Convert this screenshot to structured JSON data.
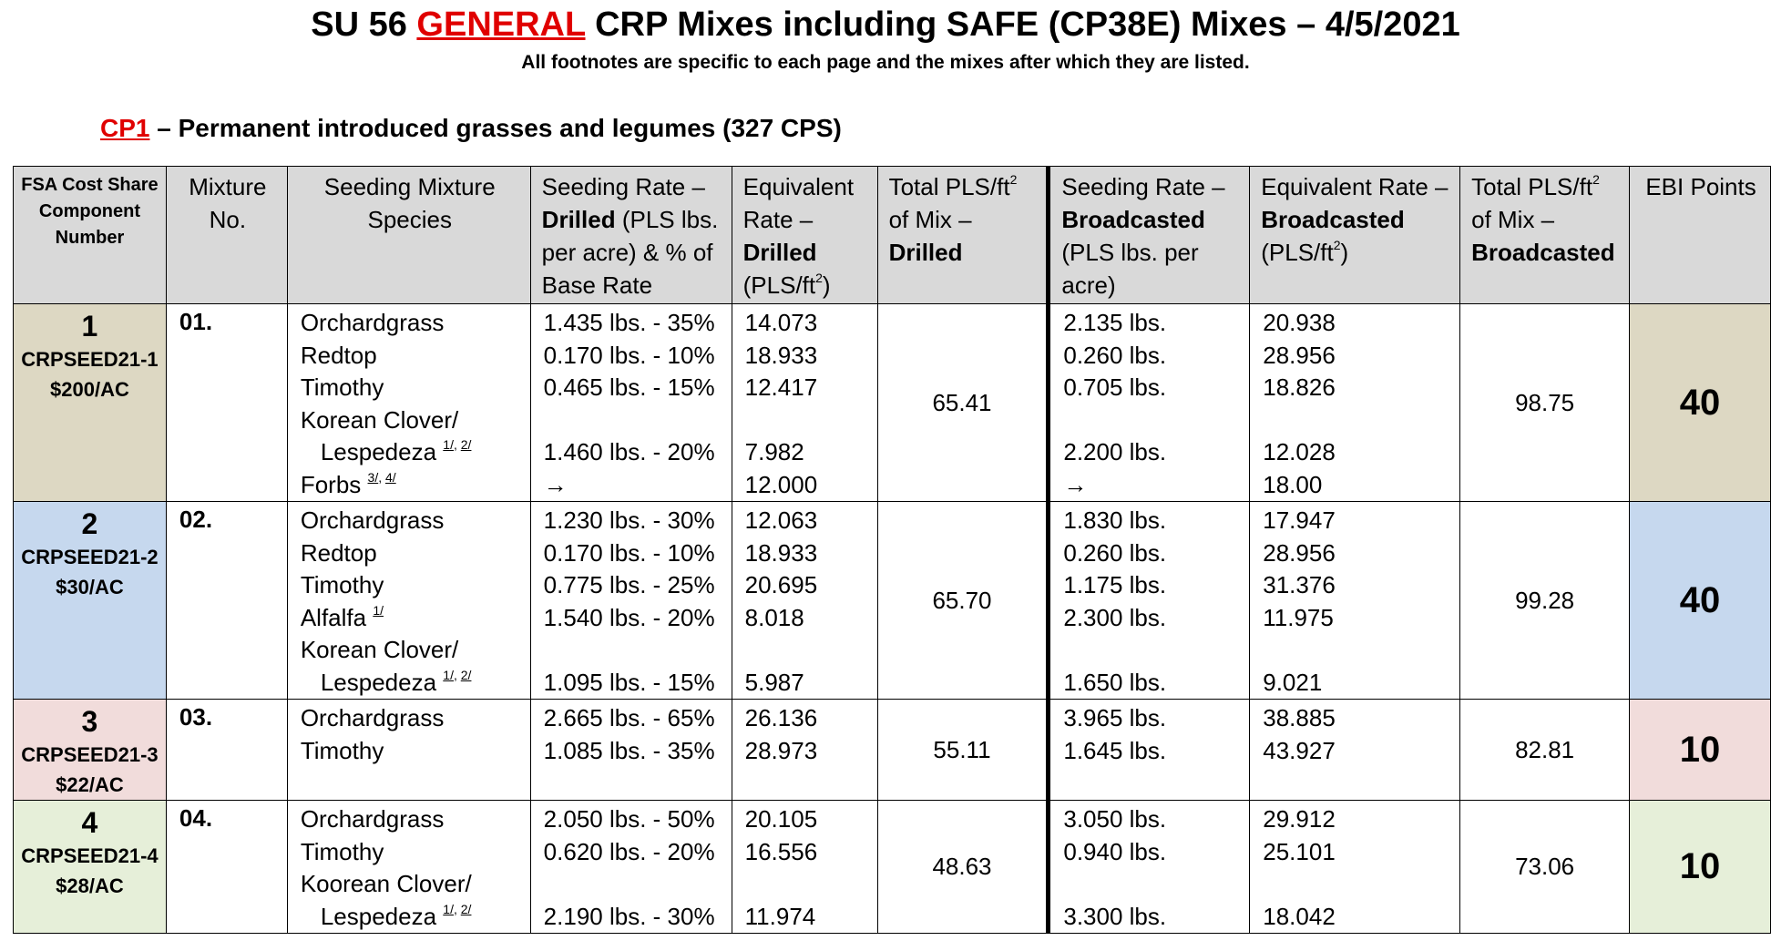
{
  "title": {
    "prefix": "SU 56 ",
    "highlight": "GENERAL",
    "suffix": " CRP Mixes including SAFE (CP38E) Mixes – 4/5/2021"
  },
  "subtitle": "All footnotes are specific to each page and the mixes after which they are listed.",
  "section": {
    "code": "CP1",
    "description": " – Permanent introduced grasses and legumes (327 CPS)"
  },
  "colors": {
    "accent_red": "#e00000",
    "header_gray": "#d9d9d9",
    "row1": "#ddd8c3",
    "row2": "#c6d8ee",
    "row3": "#f1dcdb",
    "row4": "#e6efd9"
  },
  "headers": {
    "component": "FSA Cost Share Component Number",
    "mixture_no": "Mixture No.",
    "species": "Seeding Mixture Species",
    "drilled_rate_a": "Seeding Rate – ",
    "drilled_rate_b": "Drilled",
    "drilled_rate_c": " (PLS lbs. per acre) & % of Base Rate",
    "equiv_drilled_a": "Equivalent Rate – ",
    "equiv_drilled_b": "Drilled",
    "equiv_drilled_c": " (PLS/ft",
    "equiv_drilled_sup": "2",
    "equiv_drilled_d": ")",
    "total_drilled_a": "Total PLS/ft",
    "total_drilled_sup": "2",
    "total_drilled_b": " of Mix – ",
    "total_drilled_c": "Drilled",
    "broad_rate_a": "Seeding Rate – ",
    "broad_rate_b": "Broadcasted",
    "broad_rate_c": " (PLS lbs. per acre)",
    "equiv_broad_a": "Equivalent Rate – ",
    "equiv_broad_b": "Broadcasted",
    "equiv_broad_c": " (PLS/ft",
    "equiv_broad_sup": "2",
    "equiv_broad_d": ")",
    "total_broad_a": "Total PLS/ft",
    "total_broad_sup": "2",
    "total_broad_b": " of Mix – ",
    "total_broad_c": "Broadcasted",
    "ebi": "EBI Points"
  },
  "rows": [
    {
      "comp_num": "1",
      "comp_id": "CRPSEED21-1",
      "comp_cost": "$200/AC",
      "mix_no": "01.",
      "species": [
        {
          "name": "Orchardgrass"
        },
        {
          "name": "Redtop"
        },
        {
          "name": "Timothy"
        },
        {
          "name": "Korean Clover/"
        },
        {
          "name": "Lespedeza",
          "indent": true,
          "fn": [
            "1/",
            "2/"
          ]
        },
        {
          "name": "Forbs",
          "fn": [
            "3/",
            "4/"
          ]
        }
      ],
      "drilled": [
        "1.435 lbs. - 35%",
        "0.170 lbs. - 10%",
        "0.465 lbs. - 15%",
        "",
        "1.460 lbs. - 20%",
        "→"
      ],
      "equiv_drilled": [
        "14.073",
        "18.933",
        "12.417",
        "",
        "7.982",
        "12.000"
      ],
      "total_drilled": "65.41",
      "broadcast": [
        "2.135 lbs.",
        "0.260 lbs.",
        "0.705 lbs.",
        "",
        "2.200 lbs.",
        "→"
      ],
      "equiv_broadcast": [
        "20.938",
        "28.956",
        "18.826",
        "",
        "12.028",
        "18.00"
      ],
      "total_broadcast": "98.75",
      "ebi": "40"
    },
    {
      "comp_num": "2",
      "comp_id": "CRPSEED21-2",
      "comp_cost": "$30/AC",
      "mix_no": "02.",
      "species": [
        {
          "name": "Orchardgrass"
        },
        {
          "name": "Redtop"
        },
        {
          "name": "Timothy"
        },
        {
          "name": "Alfalfa",
          "fn": [
            "1/"
          ]
        },
        {
          "name": "Korean Clover/"
        },
        {
          "name": "Lespedeza",
          "indent": true,
          "fn": [
            "1/",
            "2/"
          ]
        }
      ],
      "drilled": [
        "1.230 lbs. - 30%",
        "0.170 lbs. - 10%",
        "0.775 lbs. - 25%",
        "1.540 lbs. - 20%",
        "",
        "1.095 lbs. - 15%"
      ],
      "equiv_drilled": [
        "12.063",
        "18.933",
        "20.695",
        "8.018",
        "",
        "5.987"
      ],
      "total_drilled": "65.70",
      "broadcast": [
        "1.830 lbs.",
        "0.260 lbs.",
        "1.175 lbs.",
        "2.300 lbs.",
        "",
        "1.650 lbs."
      ],
      "equiv_broadcast": [
        "17.947",
        "28.956",
        "31.376",
        "11.975",
        "",
        "9.021"
      ],
      "total_broadcast": "99.28",
      "ebi": "40"
    },
    {
      "comp_num": "3",
      "comp_id": "CRPSEED21-3",
      "comp_cost": "$22/AC",
      "mix_no": "03.",
      "species": [
        {
          "name": "Orchardgrass"
        },
        {
          "name": "Timothy"
        }
      ],
      "drilled": [
        "2.665 lbs. - 65%",
        "1.085 lbs. - 35%"
      ],
      "equiv_drilled": [
        "26.136",
        "28.973"
      ],
      "total_drilled": "55.11",
      "broadcast": [
        "3.965 lbs.",
        "1.645 lbs."
      ],
      "equiv_broadcast": [
        "38.885",
        "43.927"
      ],
      "total_broadcast": "82.81",
      "ebi": "10"
    },
    {
      "comp_num": "4",
      "comp_id": "CRPSEED21-4",
      "comp_cost": "$28/AC",
      "mix_no": "04.",
      "species": [
        {
          "name": "Orchardgrass"
        },
        {
          "name": "Timothy"
        },
        {
          "name": "Koorean Clover/"
        },
        {
          "name": "Lespedeza",
          "indent": true,
          "fn": [
            "1/",
            "2/"
          ]
        }
      ],
      "drilled": [
        "2.050 lbs. - 50%",
        "0.620 lbs. - 20%",
        "",
        "2.190 lbs. - 30%"
      ],
      "equiv_drilled": [
        "20.105",
        "16.556",
        "",
        "11.974"
      ],
      "total_drilled": "48.63",
      "broadcast": [
        "3.050 lbs.",
        "0.940 lbs.",
        "",
        "3.300 lbs."
      ],
      "equiv_broadcast": [
        "29.912",
        "25.101",
        "",
        "18.042"
      ],
      "total_broadcast": "73.06",
      "ebi": "10"
    }
  ]
}
